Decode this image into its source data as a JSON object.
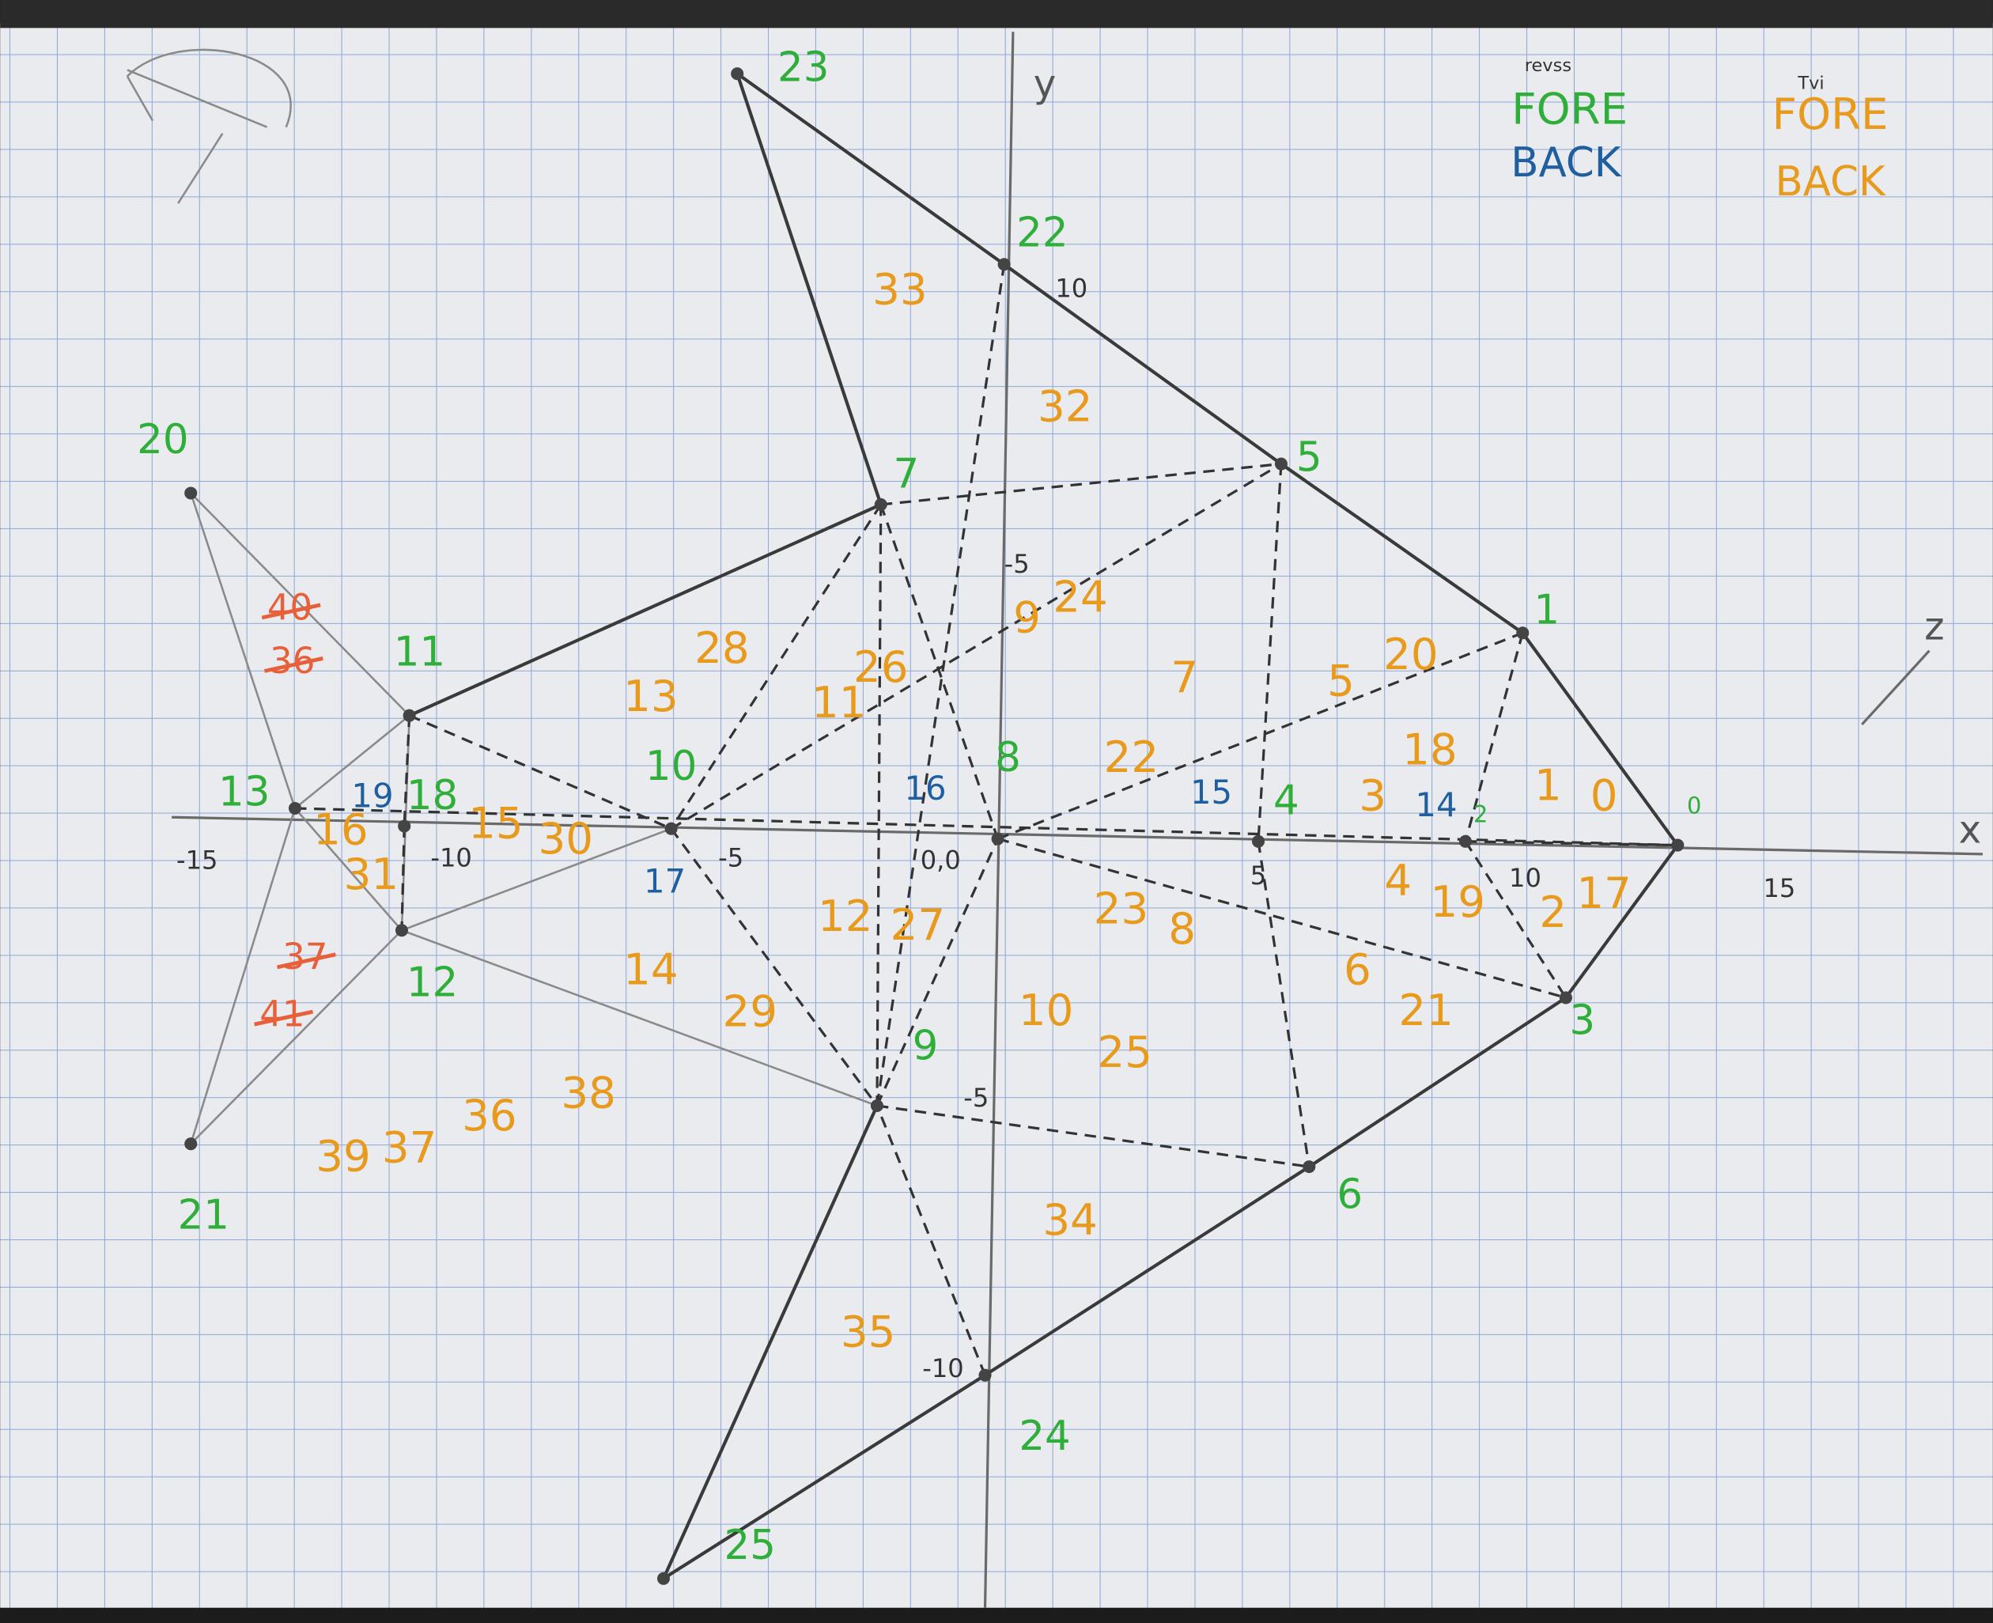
{
  "legend": {
    "green_note": "revss",
    "green_fore": "FORE",
    "blue_back": "BACK",
    "orange_note": "Tvi",
    "orange_fore": "FORE",
    "orange_back": "BACK"
  },
  "axes": {
    "x_label": "x",
    "y_label": "y",
    "z_label": "z",
    "ticks": [
      "-15",
      "-10",
      "-5",
      "0,0",
      "5",
      "10",
      "15",
      "-5",
      "10",
      "-5",
      "-10"
    ]
  },
  "vertex_labels": {
    "color": "#2fae3a",
    "labels": [
      "0",
      "1",
      "2",
      "3",
      "4",
      "5",
      "6",
      "7",
      "8",
      "9",
      "10",
      "11",
      "12",
      "13",
      "20",
      "21",
      "22",
      "23",
      "24",
      "25",
      "18"
    ]
  },
  "index_labels": {
    "color": "#1f5fa0",
    "labels": [
      "14",
      "15",
      "16",
      "17",
      "19"
    ]
  },
  "face_labels": {
    "color": "#e89a1c",
    "labels": [
      "1",
      "0",
      "2",
      "3",
      "4",
      "5",
      "6",
      "7",
      "8",
      "10",
      "11",
      "12",
      "13",
      "14",
      "15",
      "16",
      "17",
      "18",
      "19",
      "20",
      "21",
      "22",
      "23",
      "24",
      "25",
      "26",
      "27",
      "28",
      "29",
      "30",
      "31",
      "32",
      "33",
      "34",
      "35",
      "36",
      "37",
      "38",
      "39",
      "9"
    ]
  },
  "struck_labels": {
    "color": "#e8603a",
    "labels": [
      "40",
      "36",
      "37",
      "41"
    ]
  }
}
